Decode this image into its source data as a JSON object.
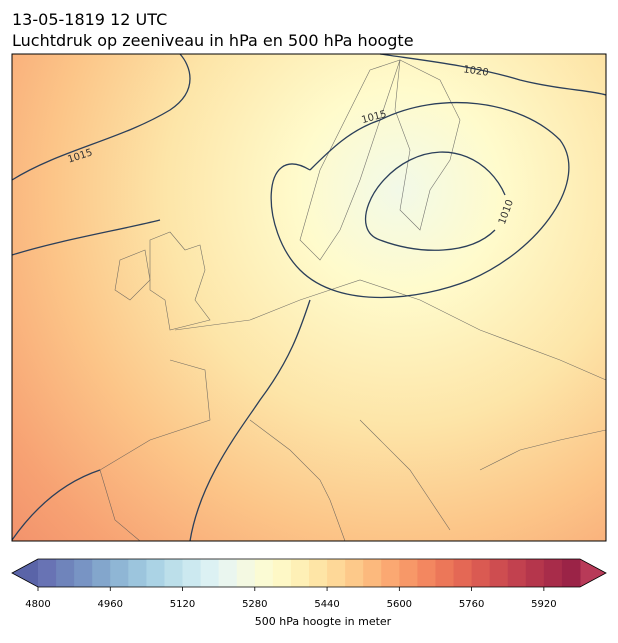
{
  "chart_data": {
    "type": "contour_map",
    "title": [
      "13-05-1819 12 UTC",
      "Luchtdruk op zeeniveau in hPa en 500 hPa hoogte"
    ],
    "contour_labels": [
      1015,
      1020,
      1015,
      1010
    ],
    "colorbar": {
      "label": "500 hPa hoogte in meter",
      "lim": [
        4800,
        6000
      ],
      "ticks": [
        4800,
        4960,
        5120,
        5280,
        5440,
        5600,
        5760,
        5920
      ],
      "colors": [
        "#6873b4",
        "#6f84bb",
        "#7894c4",
        "#83a6cc",
        "#8fb6d5",
        "#9cc5dd",
        "#abd3e5",
        "#bcdfea",
        "#cce9f0",
        "#dcf1f3",
        "#eaf6ef",
        "#f4f9e2",
        "#fbfbd4",
        "#fef8c6",
        "#fef0b6",
        "#fee5a6",
        "#fed898",
        "#fdc98a",
        "#fcb97d",
        "#fba872",
        "#f79868",
        "#f38760",
        "#ec7759",
        "#e46855",
        "#da5a52",
        "#ce4d50",
        "#c2414f",
        "#b5364c",
        "#a82c4a",
        "#9b2347"
      ],
      "under_color": "#5a64a8",
      "over_color": "#b83a58"
    }
  }
}
